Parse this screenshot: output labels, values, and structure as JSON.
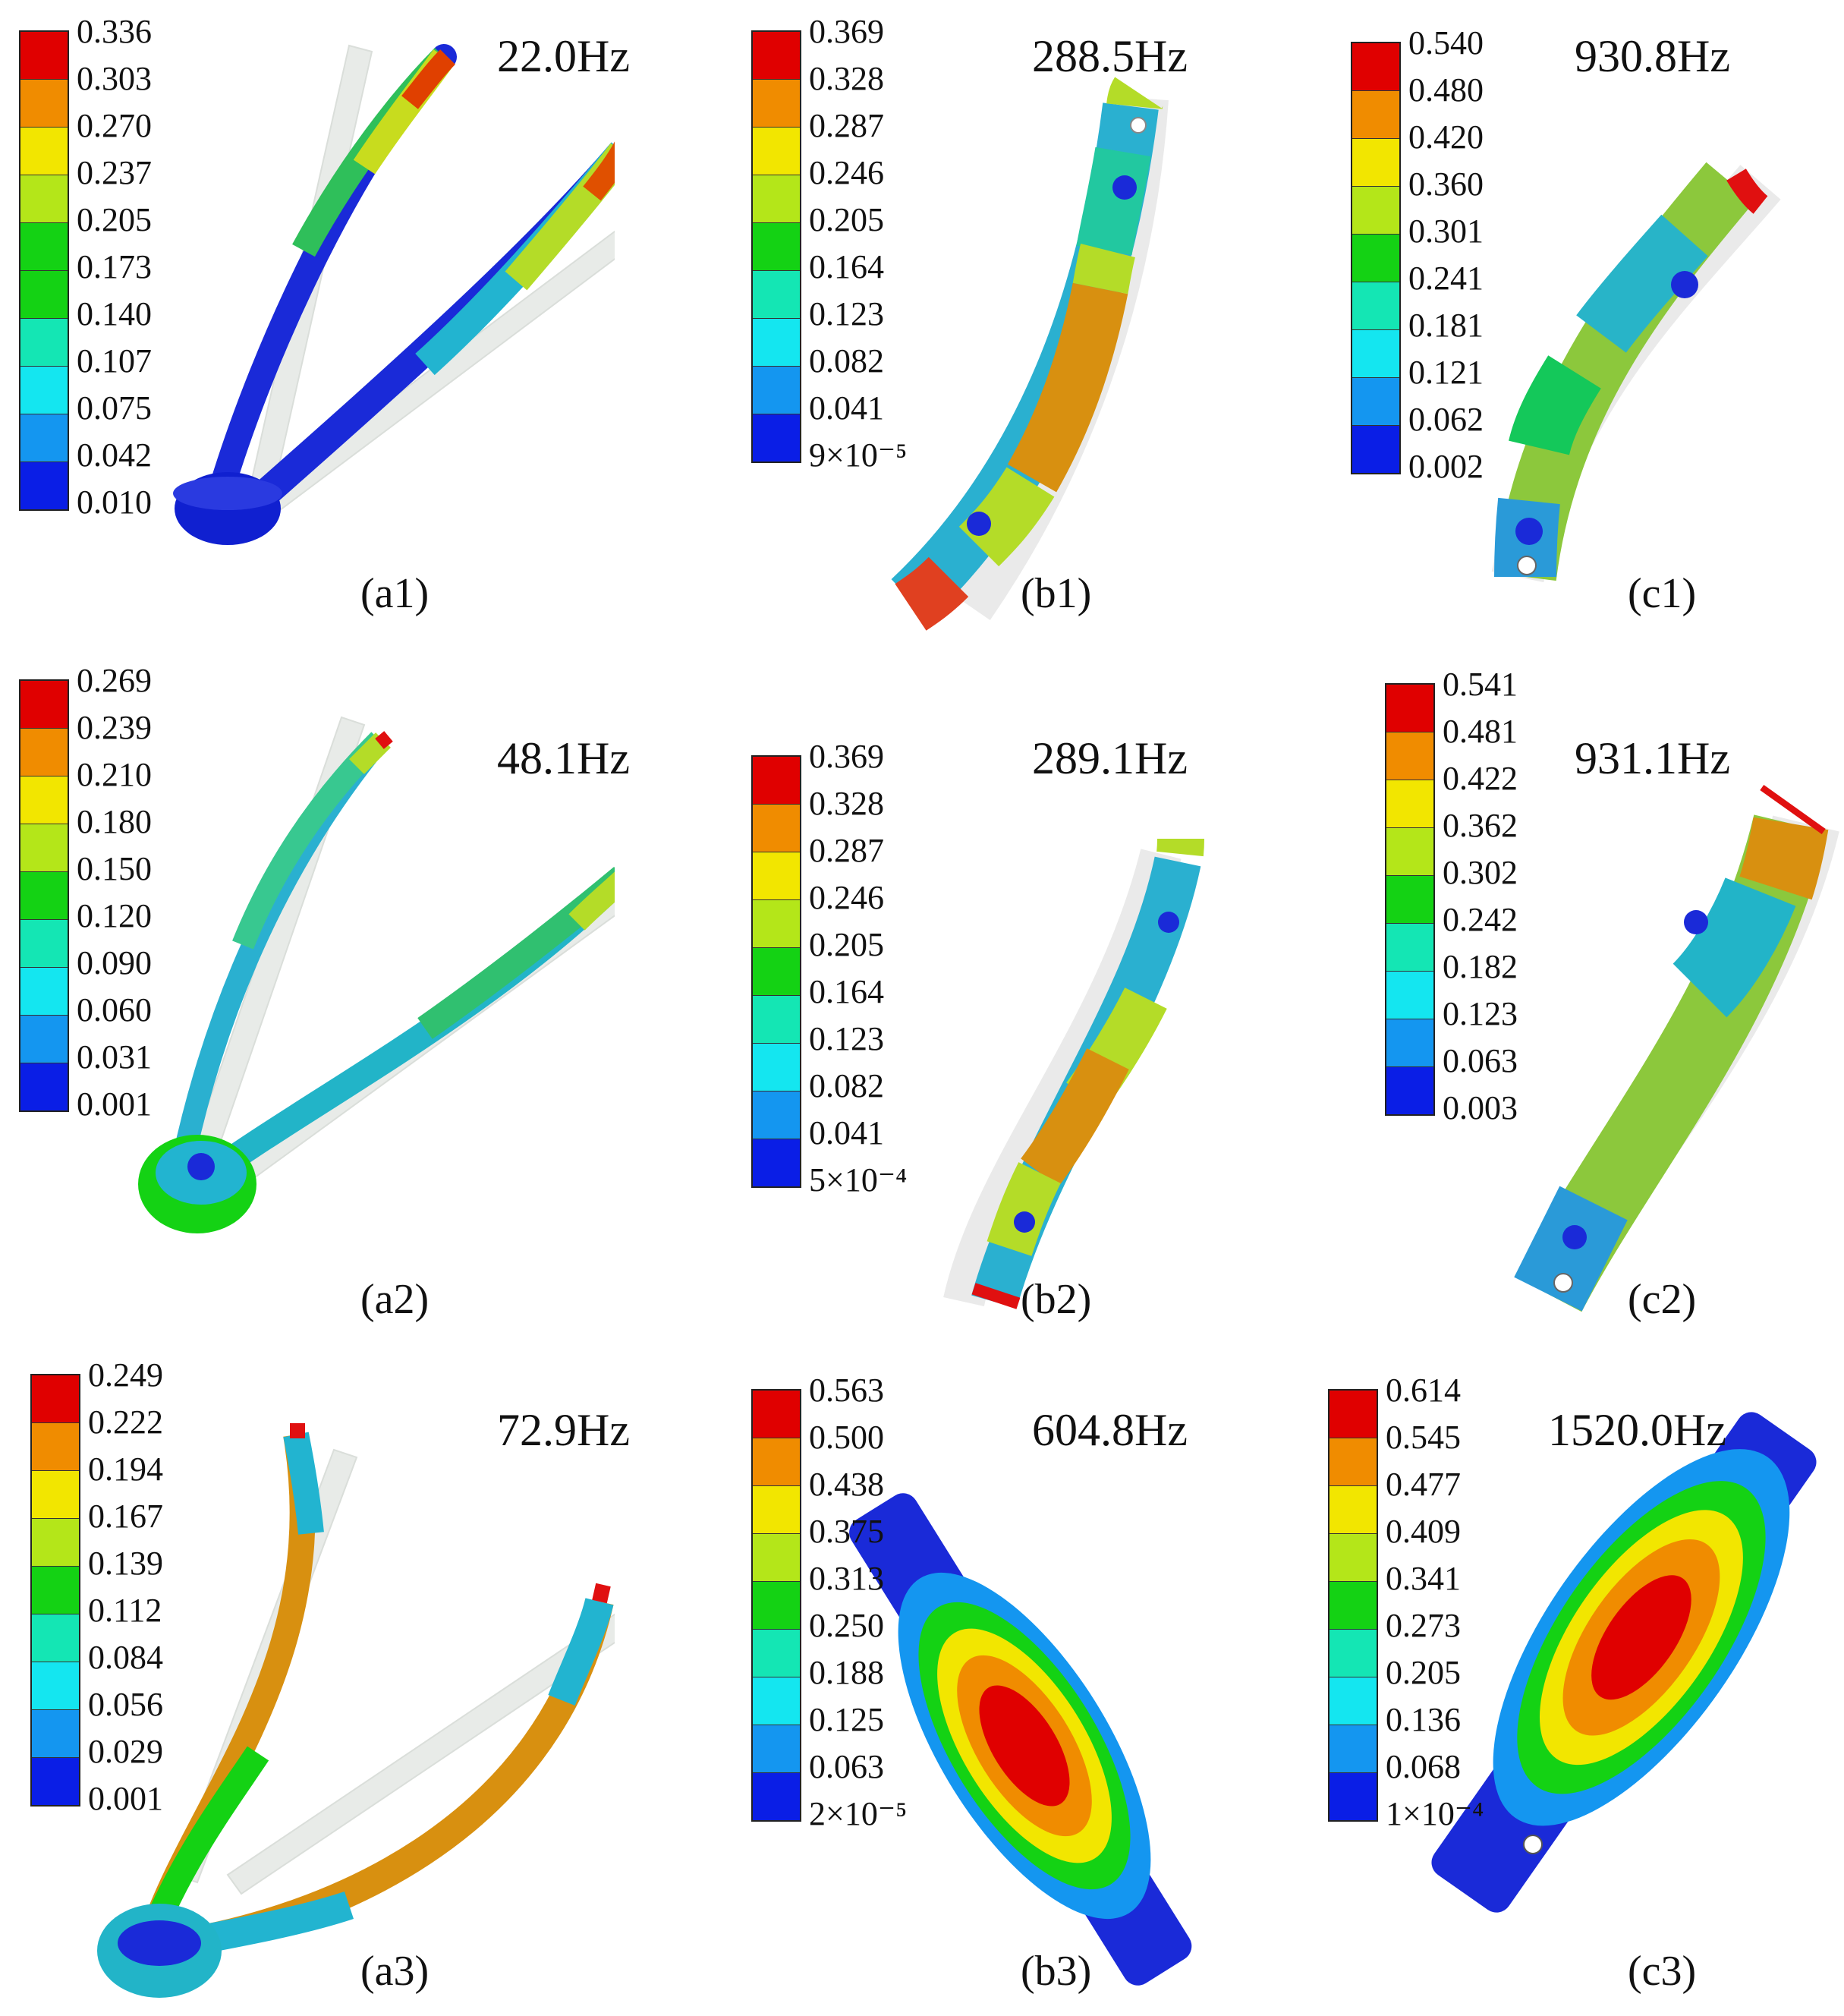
{
  "colormap": [
    "#e00000",
    "#f08c00",
    "#f2e600",
    "#b4e619",
    "#14d214",
    "#14e6b4",
    "#14e6f0",
    "#1496f0",
    "#0a1ee6"
  ],
  "panels": [
    {
      "id": "a1",
      "frequency": "22.0Hz",
      "label": "(a1)",
      "legend": [
        "0.336",
        "0.303",
        "0.270",
        "0.237",
        "0.205",
        "0.173",
        "0.140",
        "0.107",
        "0.075",
        "0.042",
        "0.010"
      ]
    },
    {
      "id": "b1",
      "frequency": "288.5Hz",
      "label": "(b1)",
      "legend": [
        "0.369",
        "0.328",
        "0.287",
        "0.246",
        "0.205",
        "0.164",
        "0.123",
        "0.082",
        "0.041",
        "9×10⁻⁵"
      ]
    },
    {
      "id": "c1",
      "frequency": "930.8Hz",
      "label": "(c1)",
      "legend": [
        "0.540",
        "0.480",
        "0.420",
        "0.360",
        "0.301",
        "0.241",
        "0.181",
        "0.121",
        "0.062",
        "0.002"
      ]
    },
    {
      "id": "a2",
      "frequency": "48.1Hz",
      "label": "(a2)",
      "legend": [
        "0.269",
        "0.239",
        "0.210",
        "0.180",
        "0.150",
        "0.120",
        "0.090",
        "0.060",
        "0.031",
        "0.001"
      ]
    },
    {
      "id": "b2",
      "frequency": "289.1Hz",
      "label": "(b2)",
      "legend": [
        "0.369",
        "0.328",
        "0.287",
        "0.246",
        "0.205",
        "0.164",
        "0.123",
        "0.082",
        "0.041",
        "5×10⁻⁴"
      ]
    },
    {
      "id": "c2",
      "frequency": "931.1Hz",
      "label": "(c2)",
      "legend": [
        "0.541",
        "0.481",
        "0.422",
        "0.362",
        "0.302",
        "0.242",
        "0.182",
        "0.123",
        "0.063",
        "0.003"
      ]
    },
    {
      "id": "a3",
      "frequency": "72.9Hz",
      "label": "(a3)",
      "legend": [
        "0.249",
        "0.222",
        "0.194",
        "0.167",
        "0.139",
        "0.112",
        "0.084",
        "0.056",
        "0.029",
        "0.001"
      ]
    },
    {
      "id": "b3",
      "frequency": "604.8Hz",
      "label": "(b3)",
      "legend": [
        "0.563",
        "0.500",
        "0.438",
        "0.375",
        "0.313",
        "0.250",
        "0.188",
        "0.125",
        "0.063",
        "2×10⁻⁵"
      ]
    },
    {
      "id": "c3",
      "frequency": "1520.0Hz",
      "label": "(c3)",
      "legend": [
        "0.614",
        "0.545",
        "0.477",
        "0.409",
        "0.341",
        "0.273",
        "0.205",
        "0.136",
        "0.068",
        "1×10⁻⁴"
      ]
    }
  ]
}
